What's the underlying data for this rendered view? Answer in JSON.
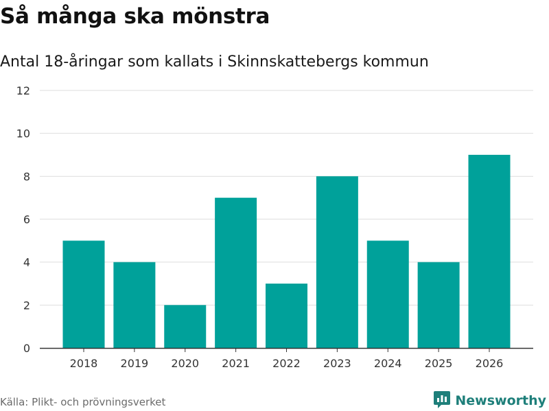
{
  "header": {
    "title": "Så många ska mönstra",
    "subtitle": "Antal 18-åringar som kallats i Skinnskattebergs kommun"
  },
  "footer": {
    "source": "Källa: Plikt- och prövningsverket",
    "brand": "Newsworthy"
  },
  "colors": {
    "bar": "#00a19a",
    "grid": "#dddddd",
    "axis": "#333333",
    "brand": "#1e7f7a"
  },
  "chart_data": {
    "type": "bar",
    "title": "Så många ska mönstra",
    "subtitle": "Antal 18-åringar som kallats i Skinnskattebergs kommun",
    "xlabel": "",
    "ylabel": "",
    "categories": [
      "2018",
      "2019",
      "2020",
      "2021",
      "2022",
      "2023",
      "2024",
      "2025",
      "2026"
    ],
    "values": [
      5,
      4,
      2,
      7,
      3,
      8,
      5,
      4,
      9
    ],
    "ylim": [
      0,
      12
    ],
    "yticks": [
      0,
      2,
      4,
      6,
      8,
      10,
      12
    ],
    "grid": true,
    "legend": "none"
  }
}
